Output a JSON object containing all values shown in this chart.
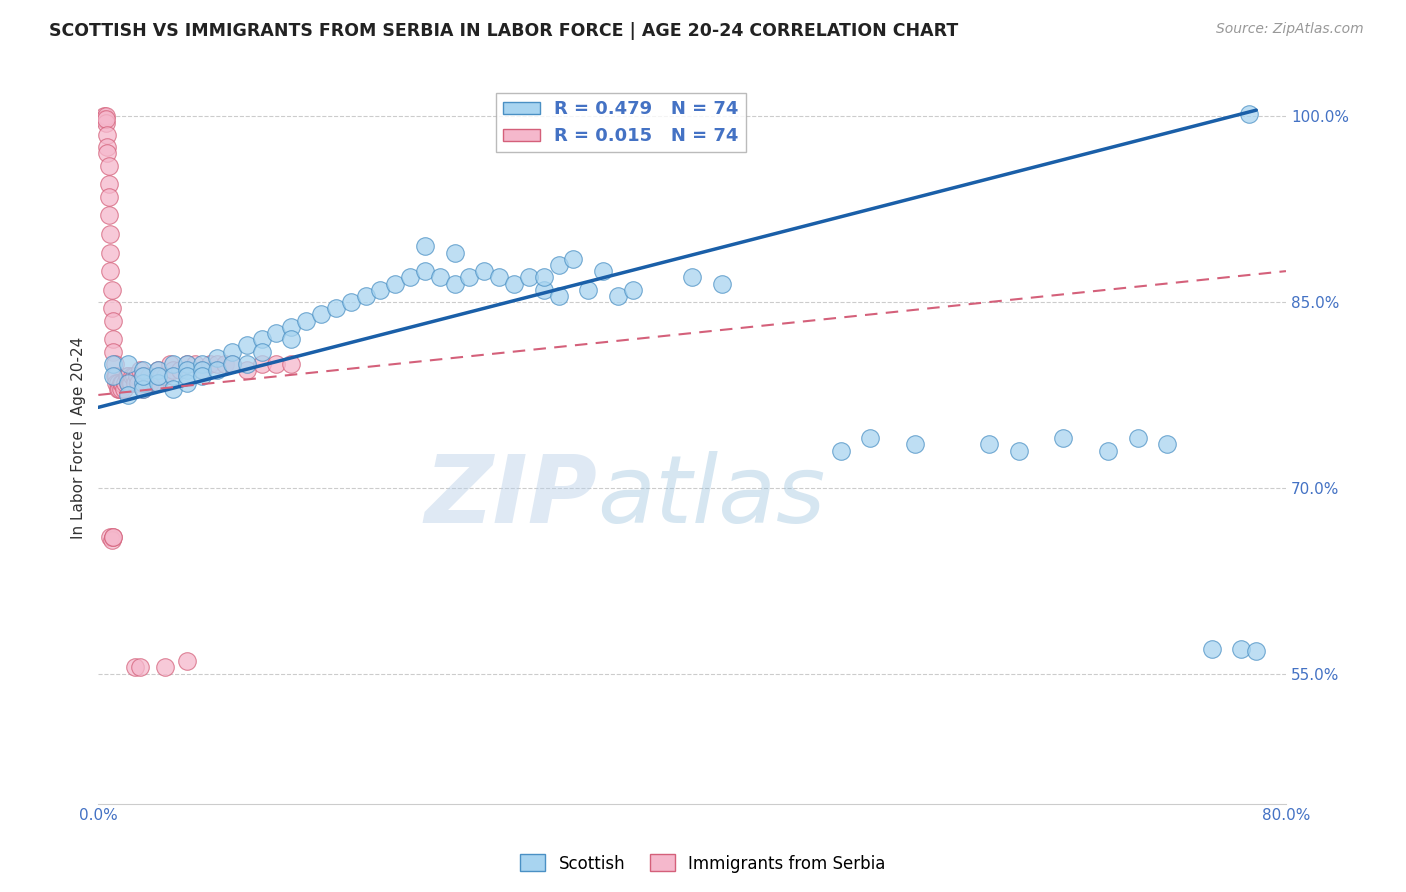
{
  "title": "SCOTTISH VS IMMIGRANTS FROM SERBIA IN LABOR FORCE | AGE 20-24 CORRELATION CHART",
  "source": "Source: ZipAtlas.com",
  "ylabel": "In Labor Force | Age 20-24",
  "watermark_zip": "ZIP",
  "watermark_atlas": "atlas",
  "legend_blue_r": "R = 0.479",
  "legend_blue_n": "N = 74",
  "legend_pink_r": "R = 0.015",
  "legend_pink_n": "N = 74",
  "legend_label_blue": "Scottish",
  "legend_label_pink": "Immigrants from Serbia",
  "xmin": 0.0,
  "xmax": 0.8,
  "ymin": 0.445,
  "ymax": 1.035,
  "yticks": [
    0.55,
    0.7,
    0.85,
    1.0
  ],
  "ytick_labels": [
    "55.0%",
    "70.0%",
    "85.0%",
    "100.0%"
  ],
  "xticks": [
    0.0,
    0.1,
    0.2,
    0.3,
    0.4,
    0.5,
    0.6,
    0.7,
    0.8
  ],
  "xtick_labels": [
    "0.0%",
    "",
    "",
    "",
    "",
    "",
    "",
    "",
    "80.0%"
  ],
  "blue_fill": "#a8d4f0",
  "blue_edge": "#4a90c4",
  "pink_fill": "#f5b8cc",
  "pink_edge": "#d4607a",
  "blue_line_color": "#1a5fa8",
  "pink_line_color": "#d4607a",
  "grid_color": "#cccccc",
  "background_color": "#ffffff",
  "title_color": "#222222",
  "axis_label_color": "#4472c4",
  "ylabel_color": "#333333",
  "blue_line_y0": 0.765,
  "blue_line_y1": 1.005,
  "blue_line_x0": 0.0,
  "blue_line_x1": 0.78,
  "pink_line_y0": 0.775,
  "pink_line_y1": 0.875,
  "pink_line_x0": 0.0,
  "pink_line_x1": 0.8,
  "blue_x": [
    0.01,
    0.01,
    0.02,
    0.02,
    0.02,
    0.03,
    0.03,
    0.03,
    0.03,
    0.04,
    0.04,
    0.04,
    0.05,
    0.05,
    0.05,
    0.06,
    0.06,
    0.06,
    0.06,
    0.07,
    0.07,
    0.07,
    0.08,
    0.08,
    0.09,
    0.09,
    0.1,
    0.1,
    0.11,
    0.11,
    0.12,
    0.13,
    0.13,
    0.14,
    0.15,
    0.16,
    0.17,
    0.18,
    0.19,
    0.2,
    0.21,
    0.22,
    0.23,
    0.24,
    0.25,
    0.26,
    0.27,
    0.28,
    0.29,
    0.3,
    0.31,
    0.33,
    0.35,
    0.22,
    0.24,
    0.4,
    0.42,
    0.5,
    0.52,
    0.55,
    0.6,
    0.62,
    0.65,
    0.68,
    0.7,
    0.72,
    0.75,
    0.77,
    0.78,
    0.3,
    0.31,
    0.32,
    0.34,
    0.36
  ],
  "blue_y": [
    0.8,
    0.79,
    0.8,
    0.785,
    0.775,
    0.795,
    0.785,
    0.78,
    0.79,
    0.795,
    0.785,
    0.79,
    0.8,
    0.79,
    0.78,
    0.8,
    0.795,
    0.785,
    0.79,
    0.8,
    0.795,
    0.79,
    0.805,
    0.795,
    0.81,
    0.8,
    0.815,
    0.8,
    0.82,
    0.81,
    0.825,
    0.83,
    0.82,
    0.835,
    0.84,
    0.845,
    0.85,
    0.855,
    0.86,
    0.865,
    0.87,
    0.875,
    0.87,
    0.865,
    0.87,
    0.875,
    0.87,
    0.865,
    0.87,
    0.86,
    0.855,
    0.86,
    0.855,
    0.895,
    0.89,
    0.87,
    0.865,
    0.73,
    0.74,
    0.735,
    0.735,
    0.73,
    0.74,
    0.73,
    0.74,
    0.735,
    0.57,
    0.57,
    0.568,
    0.87,
    0.88,
    0.885,
    0.875,
    0.86
  ],
  "pink_x": [
    0.004,
    0.004,
    0.005,
    0.005,
    0.005,
    0.006,
    0.006,
    0.006,
    0.007,
    0.007,
    0.007,
    0.007,
    0.008,
    0.008,
    0.008,
    0.009,
    0.009,
    0.01,
    0.01,
    0.01,
    0.011,
    0.011,
    0.012,
    0.012,
    0.013,
    0.013,
    0.014,
    0.015,
    0.015,
    0.016,
    0.017,
    0.018,
    0.019,
    0.02,
    0.02,
    0.021,
    0.022,
    0.023,
    0.024,
    0.025,
    0.026,
    0.027,
    0.028,
    0.03,
    0.03,
    0.032,
    0.034,
    0.035,
    0.038,
    0.04,
    0.042,
    0.045,
    0.048,
    0.05,
    0.055,
    0.06,
    0.065,
    0.07,
    0.075,
    0.08,
    0.085,
    0.09,
    0.1,
    0.11,
    0.12,
    0.13,
    0.008,
    0.009,
    0.01,
    0.01,
    0.025,
    0.028,
    0.045,
    0.06
  ],
  "pink_y": [
    1.0,
    0.998,
    1.0,
    0.995,
    0.998,
    0.985,
    0.975,
    0.97,
    0.96,
    0.945,
    0.935,
    0.92,
    0.905,
    0.89,
    0.875,
    0.86,
    0.845,
    0.835,
    0.82,
    0.81,
    0.8,
    0.79,
    0.79,
    0.785,
    0.785,
    0.78,
    0.78,
    0.78,
    0.785,
    0.785,
    0.78,
    0.785,
    0.79,
    0.785,
    0.79,
    0.785,
    0.785,
    0.79,
    0.79,
    0.785,
    0.79,
    0.785,
    0.795,
    0.79,
    0.78,
    0.785,
    0.79,
    0.785,
    0.785,
    0.795,
    0.79,
    0.79,
    0.8,
    0.795,
    0.795,
    0.8,
    0.8,
    0.795,
    0.8,
    0.8,
    0.8,
    0.8,
    0.795,
    0.8,
    0.8,
    0.8,
    0.66,
    0.658,
    0.66,
    0.66,
    0.555,
    0.555,
    0.555,
    0.56
  ]
}
